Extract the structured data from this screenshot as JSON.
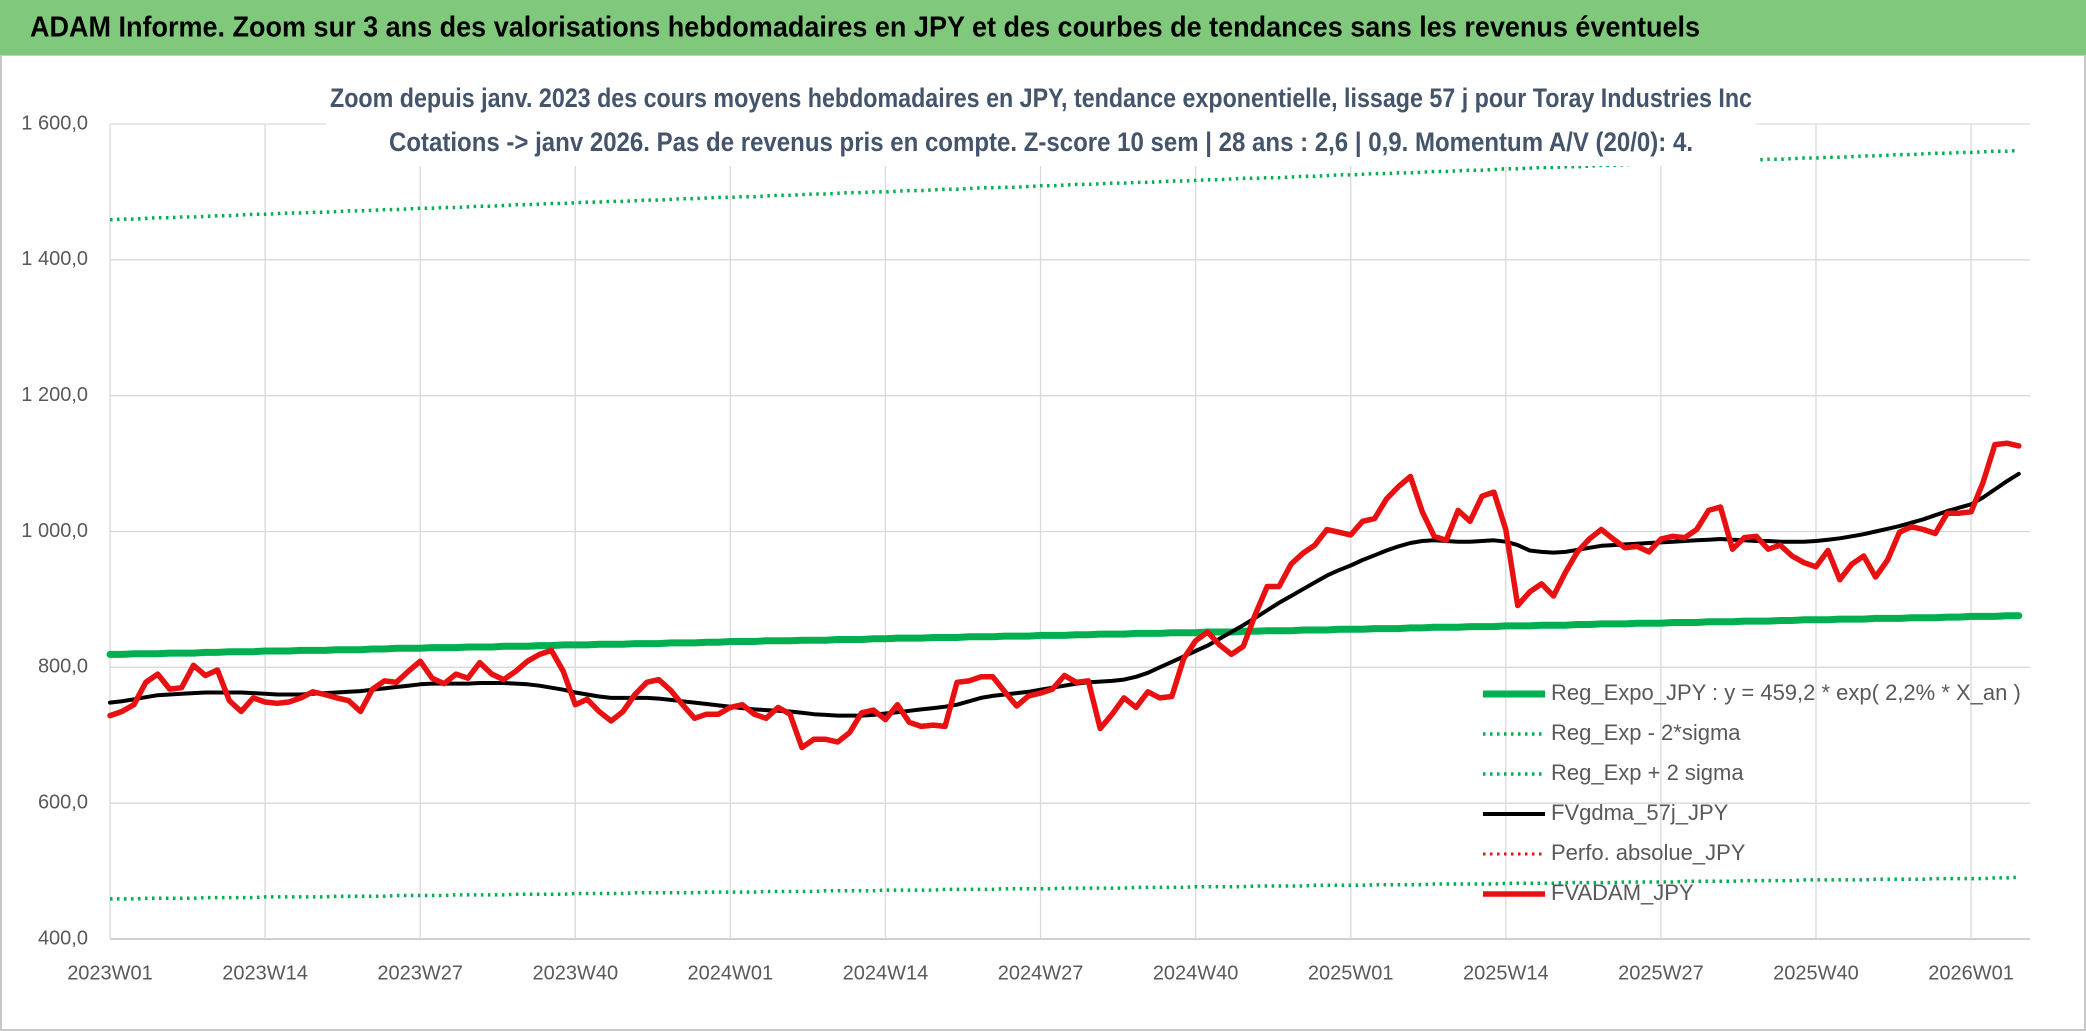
{
  "header": {
    "title": "ADAM Informe. Zoom sur 3 ans des valorisations hebdomadaires en JPY et des courbes de tendances sans les revenus éventuels"
  },
  "chart_data": {
    "type": "line",
    "title": "Zoom depuis janv. 2023 des cours moyens hebdomadaires en JPY, tendance exponentielle, lissage 57 j pour Toray Industries Inc",
    "subtitle": "Cotations -> janv 2026. Pas de revenus pris en compte. Z-score 10 sem | 28 ans : 2,6 | 0,9. Momentum A/V (20/0): 4.",
    "categories": [
      "2023W01",
      null,
      null,
      null,
      null,
      null,
      null,
      null,
      null,
      null,
      null,
      null,
      null,
      "2023W14",
      null,
      null,
      null,
      null,
      null,
      null,
      null,
      null,
      null,
      null,
      null,
      null,
      "2023W27",
      null,
      null,
      null,
      null,
      null,
      null,
      null,
      null,
      null,
      null,
      null,
      null,
      "2023W40",
      null,
      null,
      null,
      null,
      null,
      null,
      null,
      null,
      null,
      null,
      null,
      null,
      "2024W01",
      null,
      null,
      null,
      null,
      null,
      null,
      null,
      null,
      null,
      null,
      null,
      null,
      "2024W14",
      null,
      null,
      null,
      null,
      null,
      null,
      null,
      null,
      null,
      null,
      null,
      null,
      "2024W27",
      null,
      null,
      null,
      null,
      null,
      null,
      null,
      null,
      null,
      null,
      null,
      null,
      "2024W40",
      null,
      null,
      null,
      null,
      null,
      null,
      null,
      null,
      null,
      null,
      null,
      null,
      "2025W01",
      null,
      null,
      null,
      null,
      null,
      null,
      null,
      null,
      null,
      null,
      null,
      null,
      "2025W14",
      null,
      null,
      null,
      null,
      null,
      null,
      null,
      null,
      null,
      null,
      null,
      null,
      "2025W27",
      null,
      null,
      null,
      null,
      null,
      null,
      null,
      null,
      null,
      null,
      null,
      null,
      "2025W40",
      null,
      null,
      null,
      null,
      null,
      null,
      null,
      null,
      null,
      null,
      null,
      null,
      "2026W01",
      null,
      null,
      null,
      null
    ],
    "ylim": [
      400,
      1600
    ],
    "yticks": [
      {
        "value": 400,
        "label": "400,0"
      },
      {
        "value": 600,
        "label": "600,0"
      },
      {
        "value": 800,
        "label": "800,0"
      },
      {
        "value": 1000,
        "label": "1 000,0"
      },
      {
        "value": 1200,
        "label": "1 200,0"
      },
      {
        "value": 1400,
        "label": "1 400,0"
      },
      {
        "value": 1600,
        "label": "1 600,0"
      }
    ],
    "grid": true,
    "legend": "bottom-right",
    "series": [
      {
        "name": "Reg_Expo_JPY : y = 459,2 * exp( 2,2% *  X_an )",
        "color": "#00b050",
        "style": "solid",
        "values": [
          819,
          819,
          820,
          820,
          820,
          821,
          821,
          821,
          822,
          822,
          823,
          823,
          823,
          824,
          824,
          824,
          825,
          825,
          825,
          826,
          826,
          826,
          827,
          827,
          828,
          828,
          828,
          829,
          829,
          829,
          830,
          830,
          830,
          831,
          831,
          831,
          832,
          832,
          833,
          833,
          833,
          834,
          834,
          834,
          835,
          835,
          835,
          836,
          836,
          836,
          837,
          837,
          838,
          838,
          838,
          839,
          839,
          839,
          840,
          840,
          840,
          841,
          841,
          841,
          842,
          842,
          843,
          843,
          843,
          844,
          844,
          844,
          845,
          845,
          845,
          846,
          846,
          846,
          847,
          847,
          847,
          848,
          848,
          849,
          849,
          849,
          850,
          850,
          850,
          851,
          851,
          851,
          852,
          852,
          852,
          853,
          853,
          854,
          854,
          854,
          855,
          855,
          855,
          856,
          856,
          856,
          857,
          857,
          857,
          858,
          858,
          859,
          859,
          859,
          860,
          860,
          860,
          861,
          861,
          861,
          862,
          862,
          862,
          863,
          863,
          864,
          864,
          864,
          865,
          865,
          865,
          866,
          866,
          866,
          867,
          867,
          867,
          868,
          868,
          868,
          869,
          869,
          870,
          870,
          870,
          871,
          871,
          871,
          872,
          872,
          872,
          873,
          873,
          873,
          874,
          874,
          875,
          875,
          875,
          876,
          876
        ]
      },
      {
        "name": "Reg_Exp - 2*sigma",
        "color": "#00b050",
        "style": "dotted",
        "values": [
          459,
          459,
          459,
          460,
          460,
          460,
          460,
          460,
          461,
          461,
          461,
          461,
          461,
          462,
          462,
          462,
          462,
          462,
          462,
          463,
          463,
          463,
          463,
          463,
          464,
          464,
          464,
          464,
          464,
          465,
          465,
          465,
          465,
          465,
          466,
          466,
          466,
          466,
          466,
          467,
          467,
          467,
          467,
          467,
          468,
          468,
          468,
          468,
          468,
          468,
          469,
          469,
          469,
          469,
          469,
          470,
          470,
          470,
          470,
          470,
          471,
          471,
          471,
          471,
          471,
          472,
          472,
          472,
          472,
          472,
          473,
          473,
          473,
          473,
          473,
          474,
          474,
          474,
          474,
          474,
          475,
          475,
          475,
          475,
          475,
          475,
          476,
          476,
          476,
          476,
          476,
          477,
          477,
          477,
          477,
          477,
          478,
          478,
          478,
          478,
          478,
          479,
          479,
          479,
          479,
          479,
          480,
          480,
          480,
          480,
          480,
          481,
          481,
          481,
          481,
          481,
          481,
          482,
          482,
          482,
          482,
          482,
          483,
          483,
          483,
          483,
          483,
          484,
          484,
          484,
          484,
          484,
          485,
          485,
          485,
          485,
          485,
          486,
          486,
          486,
          486,
          486,
          487,
          487,
          487,
          487,
          487,
          487,
          488,
          488,
          488,
          488,
          488,
          489,
          489,
          489,
          489,
          489,
          490,
          490,
          491
        ]
      },
      {
        "name": "Reg_Exp + 2 sigma",
        "color": "#00b050",
        "style": "dotted",
        "values": [
          1459,
          1460,
          1460,
          1461,
          1462,
          1462,
          1463,
          1463,
          1464,
          1465,
          1465,
          1466,
          1467,
          1467,
          1468,
          1469,
          1469,
          1470,
          1470,
          1471,
          1472,
          1472,
          1473,
          1474,
          1474,
          1475,
          1476,
          1476,
          1477,
          1477,
          1478,
          1479,
          1479,
          1480,
          1481,
          1481,
          1482,
          1483,
          1483,
          1484,
          1485,
          1485,
          1486,
          1486,
          1487,
          1488,
          1488,
          1489,
          1490,
          1490,
          1491,
          1492,
          1492,
          1493,
          1493,
          1494,
          1495,
          1495,
          1496,
          1497,
          1497,
          1498,
          1499,
          1499,
          1500,
          1500,
          1501,
          1502,
          1502,
          1503,
          1504,
          1504,
          1505,
          1506,
          1506,
          1507,
          1507,
          1508,
          1509,
          1509,
          1510,
          1511,
          1511,
          1512,
          1513,
          1513,
          1514,
          1514,
          1515,
          1516,
          1516,
          1517,
          1518,
          1518,
          1519,
          1520,
          1520,
          1521,
          1521,
          1522,
          1523,
          1523,
          1524,
          1525,
          1525,
          1526,
          1527,
          1527,
          1528,
          1528,
          1529,
          1530,
          1530,
          1531,
          1532,
          1532,
          1533,
          1534,
          1534,
          1535,
          1536,
          1536,
          1537,
          1537,
          1538,
          1539,
          1539,
          1540,
          1541,
          1541,
          1542,
          1543,
          1543,
          1544,
          1544,
          1545,
          1546,
          1546,
          1547,
          1548,
          1548,
          1549,
          1550,
          1550,
          1551,
          1551,
          1552,
          1553,
          1553,
          1554,
          1555,
          1555,
          1556,
          1557,
          1557,
          1558,
          1558,
          1559,
          1560,
          1560,
          1561
        ]
      },
      {
        "name": "FVgdma_57j_JPY",
        "color": "#000000",
        "style": "solid",
        "values": [
          748,
          750,
          753,
          756,
          759,
          760,
          761,
          762,
          763,
          763,
          763,
          763,
          762,
          761,
          760,
          760,
          760,
          761,
          762,
          763,
          764,
          765,
          767,
          769,
          771,
          773,
          775,
          776,
          776,
          776,
          776,
          777,
          777,
          777,
          776,
          775,
          773,
          770,
          767,
          763,
          760,
          757,
          755,
          755,
          755,
          755,
          754,
          752,
          750,
          748,
          746,
          744,
          742,
          740,
          738,
          737,
          736,
          735,
          733,
          731,
          730,
          729,
          729,
          729,
          730,
          732,
          734,
          736,
          738,
          740,
          742,
          745,
          750,
          755,
          758,
          760,
          762,
          764,
          767,
          770,
          773,
          776,
          778,
          779,
          780,
          782,
          786,
          792,
          800,
          808,
          816,
          824,
          832,
          842,
          852,
          862,
          873,
          884,
          895,
          905,
          915,
          925,
          935,
          943,
          950,
          958,
          965,
          972,
          978,
          983,
          986,
          987,
          986,
          985,
          985,
          986,
          987,
          985,
          980,
          972,
          970,
          969,
          970,
          973,
          976,
          979,
          980,
          981,
          982,
          983,
          984,
          985,
          986,
          987,
          988,
          989,
          988,
          987,
          986,
          986,
          985,
          985,
          985,
          986,
          988,
          990,
          993,
          996,
          1000,
          1004,
          1008,
          1013,
          1018,
          1024,
          1030,
          1035,
          1040,
          1050,
          1062,
          1074,
          1085
        ]
      },
      {
        "name": "Perfo. absolue_JPY",
        "color": "#e81010",
        "style": "dotted",
        "values": [
          null,
          null,
          null,
          null,
          null,
          null,
          null,
          null,
          null,
          null,
          null,
          null,
          null,
          null,
          null,
          null,
          null,
          null,
          null,
          null,
          null,
          null,
          null,
          null,
          null,
          null,
          null,
          null,
          null,
          null,
          null,
          null,
          null,
          null,
          null,
          null,
          null,
          null,
          null,
          null,
          null,
          null,
          null,
          null,
          null,
          null,
          null,
          null,
          null,
          null,
          null,
          null,
          null,
          null,
          null,
          null,
          null,
          null,
          null,
          null,
          null,
          null,
          null,
          null,
          null,
          null,
          null,
          null,
          null,
          null,
          null,
          null,
          null,
          null,
          null,
          null,
          null,
          null,
          null,
          null,
          null,
          null,
          null,
          null,
          null,
          null,
          null,
          null,
          null,
          null,
          null,
          null,
          null,
          null,
          null,
          null,
          null,
          null,
          null,
          null,
          null,
          null,
          null,
          null,
          null,
          null,
          null,
          null,
          null,
          null,
          null,
          null,
          null,
          null,
          null,
          null,
          null,
          null,
          null,
          null,
          null,
          null,
          null,
          null,
          null,
          null,
          null,
          null,
          null,
          null,
          null,
          null,
          null,
          null,
          null,
          null,
          null,
          null,
          null,
          null,
          null,
          null,
          null,
          null,
          null,
          null,
          null,
          null,
          null,
          null,
          null,
          null,
          null,
          null,
          null,
          null,
          null,
          null,
          null,
          null,
          null
        ]
      },
      {
        "name": "FVADAM_JPY",
        "color": "#e81010",
        "style": "solid",
        "values": [
          729,
          735,
          745,
          778,
          790,
          768,
          770,
          803,
          788,
          796,
          751,
          735,
          755,
          749,
          747,
          749,
          755,
          764,
          760,
          755,
          751,
          735,
          768,
          780,
          778,
          794,
          809,
          784,
          776,
          790,
          784,
          807,
          790,
          782,
          794,
          809,
          819,
          825,
          794,
          745,
          753,
          735,
          721,
          735,
          760,
          778,
          782,
          766,
          745,
          725,
          731,
          731,
          741,
          745,
          731,
          725,
          741,
          731,
          682,
          694,
          694,
          690,
          704,
          733,
          737,
          723,
          745,
          719,
          713,
          715,
          713,
          778,
          780,
          786,
          786,
          764,
          743,
          758,
          762,
          768,
          788,
          778,
          780,
          710,
          731,
          755,
          741,
          764,
          755,
          757,
          813,
          839,
          852,
          833,
          819,
          831,
          878,
          919,
          919,
          952,
          968,
          980,
          1003,
          999,
          995,
          1015,
          1019,
          1048,
          1066,
          1081,
          1029,
          993,
          987,
          1031,
          1015,
          1052,
          1058,
          1003,
          891,
          911,
          923,
          905,
          940,
          970,
          989,
          1003,
          989,
          976,
          978,
          970,
          989,
          993,
          991,
          1003,
          1031,
          1036,
          974,
          991,
          993,
          974,
          980,
          964,
          954,
          948,
          972,
          929,
          952,
          964,
          933,
          958,
          999,
          1007,
          1003,
          997,
          1027,
          1027,
          1029,
          1072,
          1128,
          1130,
          1126
        ]
      }
    ]
  }
}
